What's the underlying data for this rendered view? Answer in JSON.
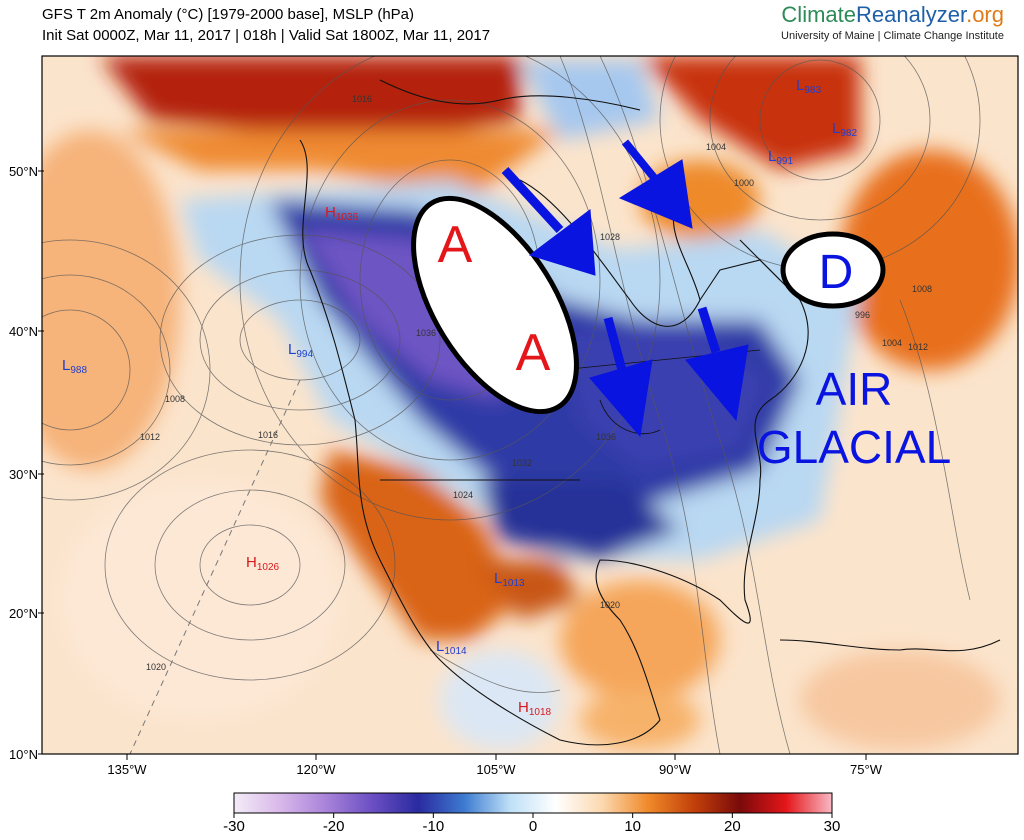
{
  "header": {
    "line1": "GFS T 2m Anomaly (°C) [1979-2000 base], MSLP (hPa)",
    "line2": "Init Sat 0000Z, Mar 11, 2017 | 018h | Valid Sat 1800Z, Mar 11, 2017"
  },
  "brand": {
    "name_part1": "Climate",
    "name_part2": "Reanalyzer",
    "name_part3": ".org",
    "subtitle": "University of Maine | Climate Change Institute"
  },
  "lat_labels": [
    "50°N",
    "40°N",
    "30°N",
    "20°N",
    "10°N"
  ],
  "lon_labels": [
    "135°W",
    "120°W",
    "105°W",
    "90°W",
    "75°W"
  ],
  "colorbar": {
    "ticks": [
      "-30",
      "-20",
      "-10",
      "0",
      "10",
      "20",
      "30"
    ],
    "colors": [
      "#f4ecf7",
      "#d9b8ea",
      "#a883da",
      "#6b4fc3",
      "#2a2aa0",
      "#3d7bd0",
      "#bfe0f7",
      "#ffffff",
      "#fbd9b0",
      "#f08a2a",
      "#c2400a",
      "#7a0a0a",
      "#e4161a",
      "#f8b9c4"
    ]
  },
  "pressure_centers": [
    {
      "type": "H",
      "value": "1036",
      "color": "#d7191c"
    },
    {
      "type": "L",
      "value": "994",
      "color": "#1f3fd0"
    },
    {
      "type": "L",
      "value": "988",
      "color": "#1f3fd0"
    },
    {
      "type": "L",
      "value": "983",
      "color": "#1f3fd0"
    },
    {
      "type": "L",
      "value": "982",
      "color": "#1f3fd0"
    },
    {
      "type": "L",
      "value": "991",
      "color": "#1f3fd0"
    },
    {
      "type": "H",
      "value": "1026",
      "color": "#d7191c"
    },
    {
      "type": "L",
      "value": "1013",
      "color": "#1f3fd0"
    },
    {
      "type": "L",
      "value": "1014",
      "color": "#1f3fd0"
    },
    {
      "type": "H",
      "value": "1018",
      "color": "#d7191c"
    }
  ],
  "isobar_labels": [
    "1016",
    "1040",
    "1028",
    "1024",
    "1004",
    "1000",
    "996",
    "1008",
    "1012",
    "1020",
    "1036",
    "1032"
  ],
  "annotations": {
    "high_letter": "A",
    "high_letter2": "A",
    "low_letter": "D",
    "air_label_line1": "AIR",
    "air_label_line2": "GLACIAL",
    "annotation_red": "#e4161a",
    "annotation_blue": "#0a14e0"
  }
}
